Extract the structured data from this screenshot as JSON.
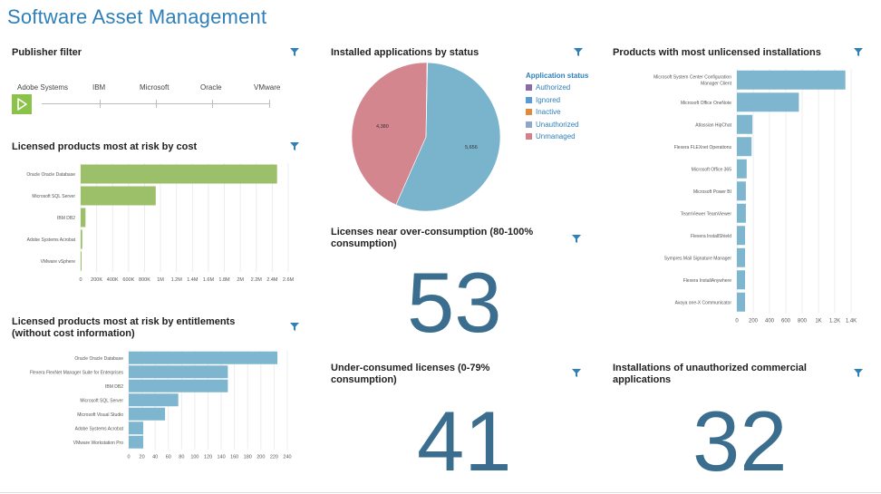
{
  "app": {
    "title": "Software Asset Management"
  },
  "colors": {
    "green_bar": "#9cbf6a",
    "blue_bar": "#7fb6cf",
    "title_blue": "#2f7fb8",
    "number": "#3a6d8e"
  },
  "publisher_filter": {
    "title": "Publisher filter",
    "publishers": [
      "Adobe Systems",
      "IBM",
      "Microsoft",
      "Oracle",
      "VMware"
    ],
    "play_icon": "play-icon"
  },
  "installed_status": {
    "title": "Installed applications by status",
    "legend_title": "Application status",
    "legend": [
      {
        "label": "Authorized",
        "color": "#8a6ba8"
      },
      {
        "label": "Ignored",
        "color": "#5b9bd5"
      },
      {
        "label": "Inactive",
        "color": "#e08a3c"
      },
      {
        "label": "Unauthorized",
        "color": "#8da6c9"
      },
      {
        "label": "Unmanaged",
        "color": "#d47f8a"
      }
    ],
    "slice_labels": [
      "4,380",
      "5,656"
    ]
  },
  "unlicensed": {
    "title": "Products with most unlicensed installations"
  },
  "risk_cost": {
    "title": "Licensed products most at risk by cost"
  },
  "over_consumption": {
    "title": "Licenses near over-consumption (80-100% consumption)",
    "value": "53"
  },
  "risk_entitlements": {
    "title": "Licensed products most at risk by entitlements (without cost information)"
  },
  "under_consumed": {
    "title": "Under-consumed licenses (0-79% consumption)",
    "value": "41"
  },
  "unauthorized": {
    "title": "Installations of unauthorized commercial applications",
    "value": "32"
  },
  "chart_data": [
    {
      "id": "risk_cost",
      "type": "bar",
      "orientation": "horizontal",
      "categories": [
        "Oracle Oracle Database",
        "Microsoft SQL Server",
        "IBM DB2",
        "Adobe Systems Acrobat",
        "VMware vSphere"
      ],
      "values": [
        2460000,
        940000,
        60000,
        20000,
        10000
      ],
      "xlim": [
        0,
        2600000
      ],
      "ticks": [
        "0",
        "200K",
        "400K",
        "600K",
        "800K",
        "1M",
        "1.2M",
        "1.4M",
        "1.6M",
        "1.8M",
        "2M",
        "2.2M",
        "2.4M",
        "2.6M"
      ],
      "color": "#9cbf6a"
    },
    {
      "id": "risk_entitlements",
      "type": "bar",
      "orientation": "horizontal",
      "categories": [
        "Oracle Oracle Database",
        "Flexera FlexNet Manager Suite for Enterprises",
        "IBM DB2",
        "Microsoft SQL Server",
        "Microsoft Visual Studio",
        "Adobe Systems Acrobat",
        "VMware Workstation Pro"
      ],
      "values": [
        225,
        150,
        150,
        75,
        55,
        22,
        22
      ],
      "xlim": [
        0,
        240
      ],
      "ticks": [
        "0",
        "20",
        "40",
        "60",
        "80",
        "100",
        "120",
        "140",
        "160",
        "180",
        "200",
        "220",
        "240"
      ],
      "color": "#7fb6cf"
    },
    {
      "id": "unlicensed",
      "type": "bar",
      "orientation": "horizontal",
      "categories": [
        "Microsoft System Center Configuration Manager Client",
        "Microsoft Office OneNote",
        "Atlassian HipChat",
        "Flexera FLEXnet Operations",
        "Microsoft Office 365",
        "Microsoft Power BI",
        "TeamViewer TeamViewer",
        "Flexera InstallShield",
        "Sympres Mail Signature Manager",
        "Flexera InstallAnywhere",
        "Avaya one-X Communicator"
      ],
      "values": [
        1330,
        760,
        190,
        180,
        120,
        110,
        110,
        100,
        100,
        100,
        100
      ],
      "xlim": [
        0,
        1400
      ],
      "ticks": [
        "0",
        "200",
        "400",
        "600",
        "800",
        "1K",
        "1.2K",
        "1.4K"
      ],
      "color": "#7fb6cf"
    },
    {
      "id": "installed_status",
      "type": "pie",
      "labels": [
        "Unmanaged",
        "Ignored",
        "Authorized"
      ],
      "values": [
        4380,
        5656,
        10
      ],
      "colors": [
        "#d4868f",
        "#7ab3cc",
        "#8a6ba8"
      ]
    }
  ]
}
